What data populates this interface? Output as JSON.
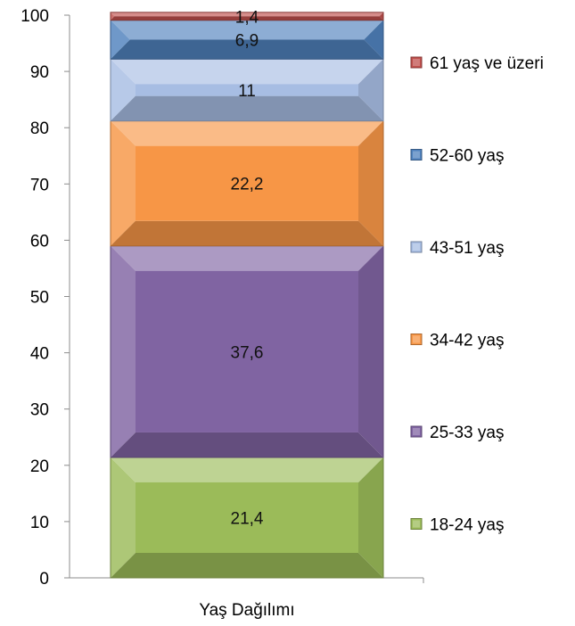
{
  "chart_data": {
    "type": "bar",
    "stacked": true,
    "categories": [
      "Yaş Dağılımı"
    ],
    "ylim": [
      0,
      100
    ],
    "yticks": [
      "0",
      "10",
      "20",
      "30",
      "40",
      "50",
      "60",
      "70",
      "80",
      "90",
      "100"
    ],
    "series": [
      {
        "name": "18-24 yaş",
        "values": [
          21.4
        ],
        "label": "21,4",
        "color": "#9bbb59"
      },
      {
        "name": "25-33 yaş",
        "values": [
          37.6
        ],
        "label": "37,6",
        "color": "#8064a2"
      },
      {
        "name": "34-42 yaş",
        "values": [
          22.2
        ],
        "label": "22,2",
        "color": "#f79646"
      },
      {
        "name": "43-51 yaş",
        "values": [
          11
        ],
        "label": "11",
        "color": "#a7bde3"
      },
      {
        "name": "52-60 yaş",
        "values": [
          6.9
        ],
        "label": "6,9",
        "color": "#4f81bd"
      },
      {
        "name": "61 yaş ve üzeri",
        "values": [
          1.4
        ],
        "label": "1,4",
        "color": "#c0504d"
      }
    ],
    "legend_position": "right",
    "grid": false
  }
}
